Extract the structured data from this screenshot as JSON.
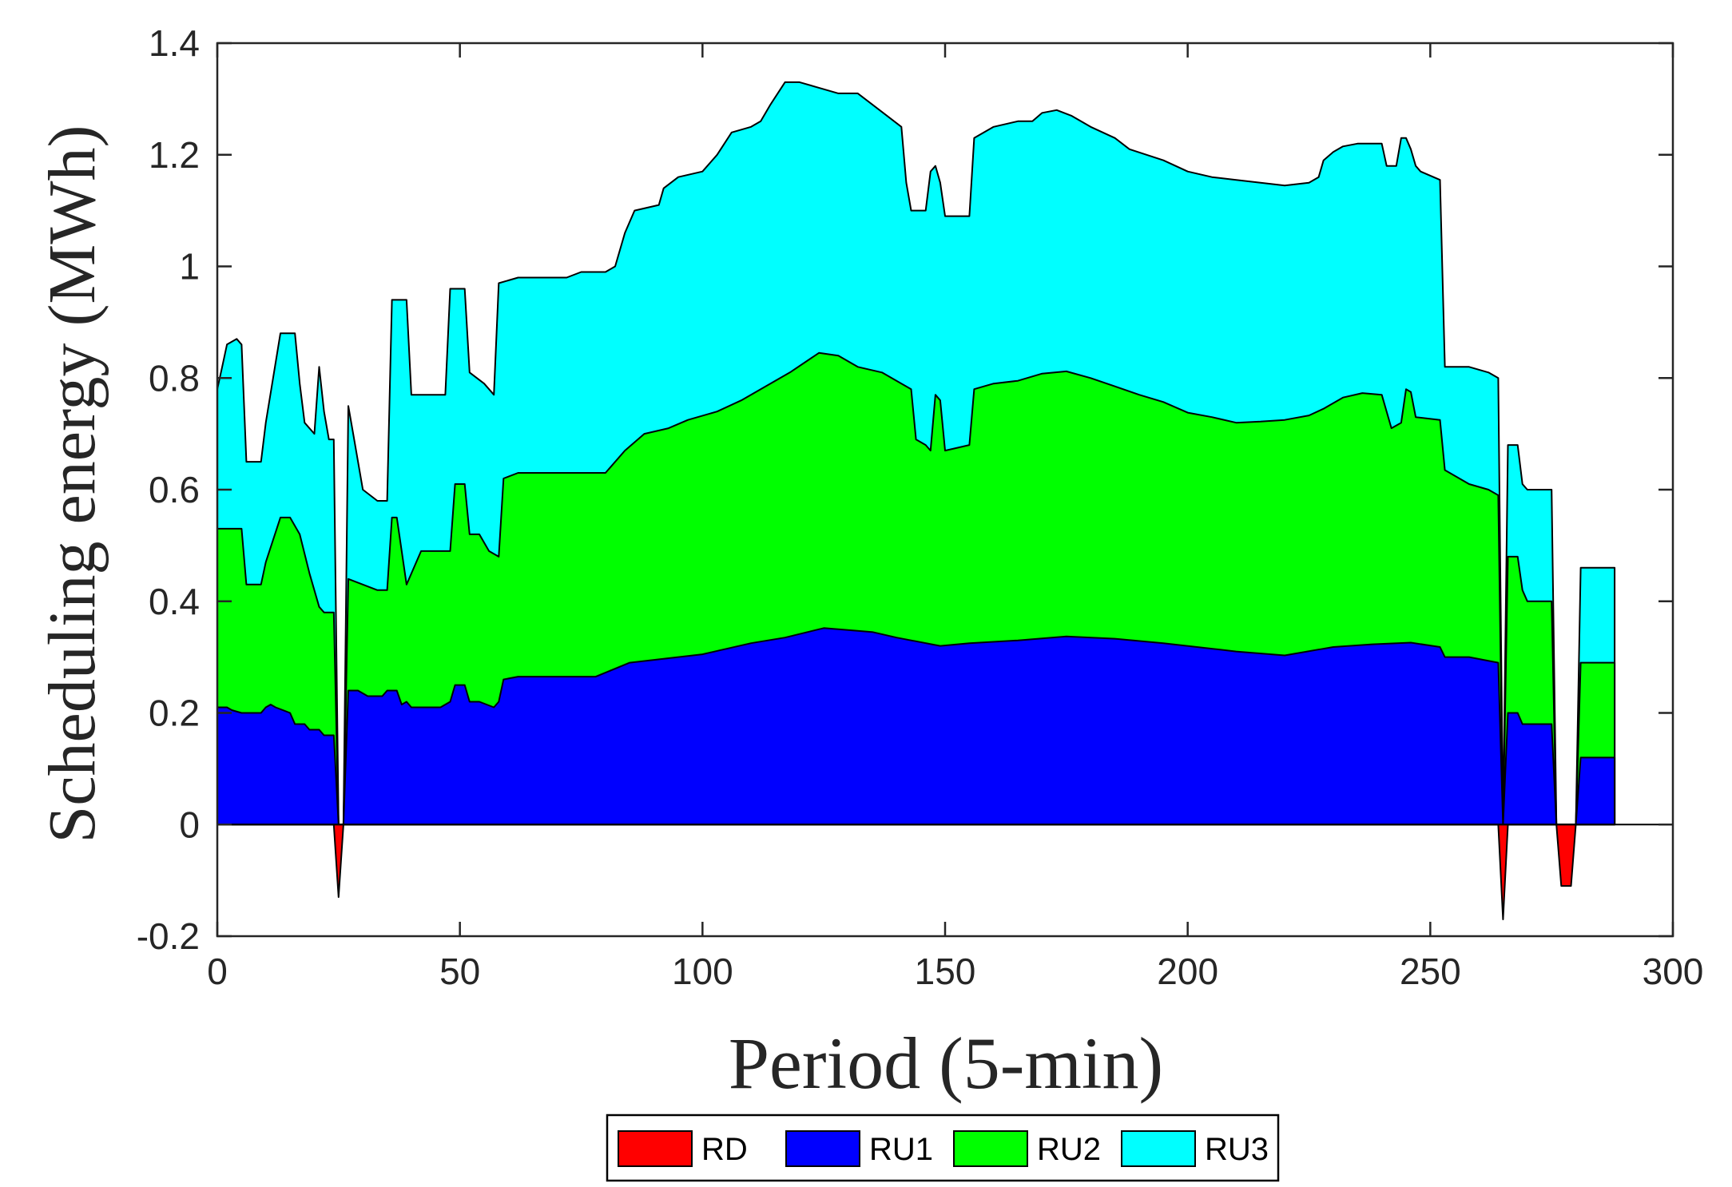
{
  "chart_data": {
    "type": "area",
    "stacked": true,
    "xlabel": "Period (5-min)",
    "ylabel": "Scheduling energy (MWh)",
    "xlim": [
      0,
      300
    ],
    "ylim": [
      -0.2,
      1.4
    ],
    "xticks": [
      0,
      50,
      100,
      150,
      200,
      250,
      300
    ],
    "yticks": [
      -0.2,
      0,
      0.2,
      0.4,
      0.6,
      0.8,
      1,
      1.2,
      1.4
    ],
    "ytick_labels": [
      "-0.2",
      "0",
      "0.2",
      "0.4",
      "0.6",
      "0.8",
      "1",
      "1.2",
      "1.4"
    ],
    "legend_position": "bottom-center-outside",
    "series": [
      {
        "name": "RD",
        "color": "#ff0000",
        "points": [
          [
            0,
            0
          ],
          [
            24,
            0
          ],
          [
            25,
            -0.13
          ],
          [
            26,
            0
          ],
          [
            264,
            0
          ],
          [
            265,
            -0.17
          ],
          [
            266,
            0
          ],
          [
            276,
            0
          ],
          [
            277,
            -0.11
          ],
          [
            279,
            -0.11
          ],
          [
            280,
            0
          ],
          [
            288,
            0
          ]
        ]
      },
      {
        "name": "RU1",
        "color": "#0000ff",
        "points": [
          [
            0,
            0.21
          ],
          [
            2,
            0.21
          ],
          [
            3,
            0.205
          ],
          [
            5,
            0.2
          ],
          [
            9,
            0.2
          ],
          [
            10,
            0.21
          ],
          [
            11,
            0.215
          ],
          [
            12,
            0.21
          ],
          [
            15,
            0.2
          ],
          [
            16,
            0.18
          ],
          [
            18,
            0.18
          ],
          [
            19,
            0.17
          ],
          [
            21,
            0.17
          ],
          [
            22,
            0.16
          ],
          [
            24,
            0.16
          ],
          [
            25,
            0
          ],
          [
            26,
            0
          ],
          [
            27,
            0.24
          ],
          [
            29,
            0.24
          ],
          [
            31,
            0.23
          ],
          [
            34,
            0.23
          ],
          [
            35,
            0.24
          ],
          [
            37,
            0.24
          ],
          [
            38,
            0.215
          ],
          [
            39,
            0.22
          ],
          [
            40,
            0.21
          ],
          [
            46,
            0.21
          ],
          [
            48,
            0.22
          ],
          [
            49,
            0.25
          ],
          [
            51,
            0.25
          ],
          [
            52,
            0.22
          ],
          [
            54,
            0.22
          ],
          [
            57,
            0.21
          ],
          [
            58,
            0.22
          ],
          [
            59,
            0.26
          ],
          [
            62,
            0.265
          ],
          [
            70,
            0.265
          ],
          [
            78,
            0.265
          ],
          [
            85,
            0.29
          ],
          [
            100,
            0.305
          ],
          [
            110,
            0.325
          ],
          [
            117,
            0.335
          ],
          [
            125,
            0.352
          ],
          [
            135,
            0.345
          ],
          [
            140,
            0.335
          ],
          [
            149,
            0.32
          ],
          [
            155,
            0.325
          ],
          [
            165,
            0.33
          ],
          [
            175,
            0.337
          ],
          [
            185,
            0.333
          ],
          [
            195,
            0.325
          ],
          [
            205,
            0.315
          ],
          [
            210,
            0.31
          ],
          [
            220,
            0.303
          ],
          [
            230,
            0.318
          ],
          [
            238,
            0.323
          ],
          [
            246,
            0.326
          ],
          [
            252,
            0.318
          ],
          [
            253,
            0.3
          ],
          [
            258,
            0.3
          ],
          [
            264,
            0.29
          ],
          [
            265,
            0
          ],
          [
            266,
            0.2
          ],
          [
            268,
            0.2
          ],
          [
            269,
            0.18
          ],
          [
            275,
            0.18
          ],
          [
            276,
            0
          ],
          [
            280,
            0
          ],
          [
            281,
            0.12
          ],
          [
            288,
            0.12
          ]
        ]
      },
      {
        "name": "RU2",
        "color": "#00ff00",
        "points": [
          [
            0,
            0.53
          ],
          [
            5,
            0.53
          ],
          [
            6,
            0.43
          ],
          [
            9,
            0.43
          ],
          [
            10,
            0.47
          ],
          [
            13,
            0.55
          ],
          [
            15,
            0.55
          ],
          [
            17,
            0.52
          ],
          [
            19,
            0.45
          ],
          [
            21,
            0.39
          ],
          [
            22,
            0.38
          ],
          [
            24,
            0.38
          ],
          [
            25,
            0
          ],
          [
            26,
            0
          ],
          [
            27,
            0.44
          ],
          [
            30,
            0.43
          ],
          [
            33,
            0.42
          ],
          [
            35,
            0.42
          ],
          [
            36,
            0.55
          ],
          [
            37,
            0.55
          ],
          [
            39,
            0.43
          ],
          [
            42,
            0.49
          ],
          [
            48,
            0.49
          ],
          [
            49,
            0.61
          ],
          [
            51,
            0.61
          ],
          [
            52,
            0.52
          ],
          [
            54,
            0.52
          ],
          [
            56,
            0.49
          ],
          [
            58,
            0.48
          ],
          [
            59,
            0.62
          ],
          [
            62,
            0.63
          ],
          [
            72,
            0.63
          ],
          [
            80,
            0.63
          ],
          [
            84,
            0.67
          ],
          [
            88,
            0.7
          ],
          [
            93,
            0.71
          ],
          [
            97,
            0.725
          ],
          [
            103,
            0.74
          ],
          [
            108,
            0.76
          ],
          [
            112,
            0.78
          ],
          [
            118,
            0.81
          ],
          [
            124,
            0.845
          ],
          [
            128,
            0.84
          ],
          [
            132,
            0.82
          ],
          [
            137,
            0.81
          ],
          [
            141,
            0.79
          ],
          [
            143,
            0.78
          ],
          [
            144,
            0.69
          ],
          [
            146,
            0.68
          ],
          [
            147,
            0.67
          ],
          [
            148,
            0.77
          ],
          [
            149,
            0.76
          ],
          [
            150,
            0.67
          ],
          [
            155,
            0.68
          ],
          [
            156,
            0.78
          ],
          [
            160,
            0.79
          ],
          [
            165,
            0.795
          ],
          [
            170,
            0.808
          ],
          [
            175,
            0.812
          ],
          [
            180,
            0.8
          ],
          [
            185,
            0.785
          ],
          [
            190,
            0.77
          ],
          [
            195,
            0.757
          ],
          [
            200,
            0.738
          ],
          [
            205,
            0.73
          ],
          [
            210,
            0.72
          ],
          [
            215,
            0.722
          ],
          [
            220,
            0.725
          ],
          [
            225,
            0.733
          ],
          [
            228,
            0.745
          ],
          [
            232,
            0.765
          ],
          [
            236,
            0.773
          ],
          [
            240,
            0.77
          ],
          [
            242,
            0.71
          ],
          [
            244,
            0.72
          ],
          [
            245,
            0.78
          ],
          [
            246,
            0.775
          ],
          [
            247,
            0.73
          ],
          [
            252,
            0.725
          ],
          [
            253,
            0.635
          ],
          [
            258,
            0.61
          ],
          [
            262,
            0.6
          ],
          [
            264,
            0.59
          ],
          [
            265,
            0
          ],
          [
            266,
            0.48
          ],
          [
            268,
            0.48
          ],
          [
            269,
            0.42
          ],
          [
            270,
            0.4
          ],
          [
            275,
            0.4
          ],
          [
            276,
            0
          ],
          [
            280,
            0
          ],
          [
            281,
            0.29
          ],
          [
            288,
            0.29
          ]
        ]
      },
      {
        "name": "RU3",
        "color": "#00ffff",
        "points": [
          [
            0,
            0.78
          ],
          [
            1,
            0.82
          ],
          [
            2,
            0.86
          ],
          [
            4,
            0.87
          ],
          [
            5,
            0.86
          ],
          [
            6,
            0.65
          ],
          [
            9,
            0.65
          ],
          [
            10,
            0.72
          ],
          [
            13,
            0.88
          ],
          [
            16,
            0.88
          ],
          [
            17,
            0.79
          ],
          [
            18,
            0.72
          ],
          [
            20,
            0.7
          ],
          [
            21,
            0.82
          ],
          [
            22,
            0.74
          ],
          [
            23,
            0.69
          ],
          [
            24,
            0.69
          ],
          [
            25,
            0
          ],
          [
            26,
            0
          ],
          [
            27,
            0.75
          ],
          [
            28,
            0.7
          ],
          [
            30,
            0.6
          ],
          [
            33,
            0.58
          ],
          [
            35,
            0.58
          ],
          [
            36,
            0.94
          ],
          [
            39,
            0.94
          ],
          [
            40,
            0.77
          ],
          [
            47,
            0.77
          ],
          [
            48,
            0.96
          ],
          [
            51,
            0.96
          ],
          [
            52,
            0.81
          ],
          [
            55,
            0.79
          ],
          [
            57,
            0.77
          ],
          [
            58,
            0.97
          ],
          [
            60,
            0.975
          ],
          [
            62,
            0.98
          ],
          [
            70,
            0.98
          ],
          [
            72,
            0.98
          ],
          [
            75,
            0.99
          ],
          [
            80,
            0.99
          ],
          [
            82,
            1.0
          ],
          [
            84,
            1.06
          ],
          [
            86,
            1.1
          ],
          [
            91,
            1.11
          ],
          [
            92,
            1.14
          ],
          [
            95,
            1.16
          ],
          [
            100,
            1.17
          ],
          [
            103,
            1.2
          ],
          [
            106,
            1.24
          ],
          [
            110,
            1.25
          ],
          [
            112,
            1.26
          ],
          [
            114,
            1.29
          ],
          [
            117,
            1.33
          ],
          [
            120,
            1.33
          ],
          [
            124,
            1.32
          ],
          [
            128,
            1.31
          ],
          [
            132,
            1.31
          ],
          [
            138,
            1.27
          ],
          [
            141,
            1.25
          ],
          [
            142,
            1.15
          ],
          [
            143,
            1.1
          ],
          [
            146,
            1.1
          ],
          [
            147,
            1.17
          ],
          [
            148,
            1.18
          ],
          [
            149,
            1.15
          ],
          [
            150,
            1.09
          ],
          [
            155,
            1.09
          ],
          [
            156,
            1.23
          ],
          [
            160,
            1.25
          ],
          [
            165,
            1.26
          ],
          [
            168,
            1.26
          ],
          [
            170,
            1.275
          ],
          [
            173,
            1.28
          ],
          [
            176,
            1.27
          ],
          [
            180,
            1.25
          ],
          [
            185,
            1.23
          ],
          [
            188,
            1.21
          ],
          [
            195,
            1.19
          ],
          [
            200,
            1.17
          ],
          [
            205,
            1.16
          ],
          [
            210,
            1.155
          ],
          [
            215,
            1.15
          ],
          [
            220,
            1.145
          ],
          [
            225,
            1.15
          ],
          [
            227,
            1.16
          ],
          [
            228,
            1.19
          ],
          [
            230,
            1.205
          ],
          [
            232,
            1.215
          ],
          [
            235,
            1.22
          ],
          [
            240,
            1.22
          ],
          [
            241,
            1.18
          ],
          [
            243,
            1.18
          ],
          [
            244,
            1.23
          ],
          [
            245,
            1.23
          ],
          [
            246,
            1.21
          ],
          [
            247,
            1.18
          ],
          [
            248,
            1.17
          ],
          [
            252,
            1.155
          ],
          [
            253,
            0.82
          ],
          [
            258,
            0.82
          ],
          [
            262,
            0.81
          ],
          [
            264,
            0.8
          ],
          [
            265,
            0
          ],
          [
            266,
            0.68
          ],
          [
            268,
            0.68
          ],
          [
            269,
            0.61
          ],
          [
            270,
            0.6
          ],
          [
            275,
            0.6
          ],
          [
            276,
            0
          ],
          [
            280,
            0
          ],
          [
            281,
            0.46
          ],
          [
            288,
            0.46
          ]
        ]
      }
    ]
  }
}
